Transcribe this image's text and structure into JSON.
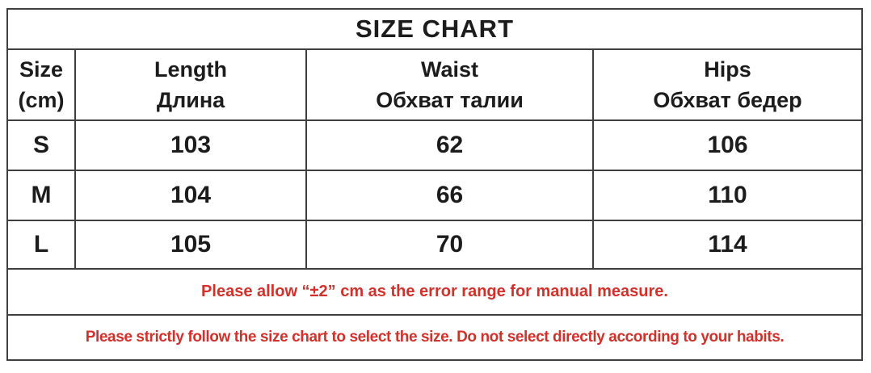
{
  "colors": {
    "border": "#3f3f3f",
    "text": "#1c1c1c",
    "note_red": "#d3302a",
    "background": "#ffffff"
  },
  "chart_data": {
    "type": "table",
    "title": "SIZE CHART",
    "unit": "cm",
    "columns": [
      {
        "line1": "Size",
        "line2": "(cm)"
      },
      {
        "line1": "Length",
        "line2": "Длина"
      },
      {
        "line1": "Waist",
        "line2": "Обхват талии"
      },
      {
        "line1": "Hips",
        "line2": "Обхват бедер"
      }
    ],
    "rows": [
      {
        "size": "S",
        "length": "103",
        "waist": "62",
        "hips": "106"
      },
      {
        "size": "M",
        "length": "104",
        "waist": "66",
        "hips": "110"
      },
      {
        "size": "L",
        "length": "105",
        "waist": "70",
        "hips": "114"
      }
    ],
    "notes": [
      "Please allow “±2” cm as the error range for manual measure.",
      "Please strictly follow the size chart  to select the size. Do not select directly according to your habits."
    ]
  }
}
